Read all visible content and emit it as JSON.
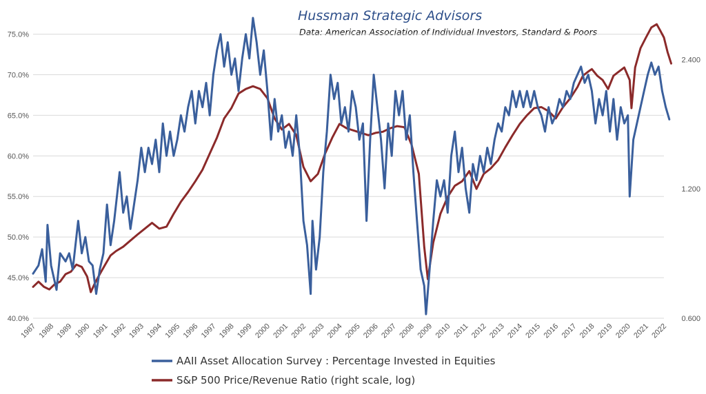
{
  "chart_data": {
    "type": "line",
    "title": "Hussman Strategic Advisors",
    "subtitle": "Data: American Association of Individual Investors, Standard & Poors",
    "x_ticks": [
      "1987",
      "1988",
      "1989",
      "1990",
      "1991",
      "1992",
      "1993",
      "1994",
      "1995",
      "1996",
      "1997",
      "1998",
      "1999",
      "2000",
      "2001",
      "2002",
      "2003",
      "2004",
      "2005",
      "2006",
      "2007",
      "2008",
      "2009",
      "2010",
      "2011",
      "2012",
      "2013",
      "2014",
      "2015",
      "2016",
      "2017",
      "2018",
      "2019",
      "2020",
      "2021",
      "2022"
    ],
    "xlim": [
      1987,
      2022
    ],
    "y_left": {
      "lim": [
        40,
        77
      ],
      "ticks": [
        40,
        45,
        50,
        55,
        60,
        65,
        70,
        75
      ],
      "tick_labels": [
        "40.0%",
        "45.0%",
        "50.0%",
        "55.0%",
        "60.0%",
        "65.0%",
        "70.0%",
        "75.0%"
      ]
    },
    "y_right": {
      "scale": "log",
      "lim": [
        0.6,
        3.0
      ],
      "ticks": [
        0.6,
        1.2,
        2.4
      ],
      "tick_labels": [
        "0.600",
        "1.200",
        "2.400"
      ]
    },
    "grid": "horizontal",
    "legend_position": "bottom-center",
    "series": [
      {
        "name": "AAII Asset Allocation Survey : Percentage Invested in Equities",
        "axis": "left",
        "color": "#3a5f9c",
        "points": [
          [
            1987.0,
            45.5
          ],
          [
            1987.3,
            46.5
          ],
          [
            1987.5,
            48.5
          ],
          [
            1987.7,
            44.5
          ],
          [
            1987.8,
            51.5
          ],
          [
            1988.0,
            46.5
          ],
          [
            1988.3,
            43.5
          ],
          [
            1988.5,
            48.0
          ],
          [
            1988.8,
            47.0
          ],
          [
            1989.0,
            48.0
          ],
          [
            1989.2,
            46.0
          ],
          [
            1989.5,
            52.0
          ],
          [
            1989.7,
            48.0
          ],
          [
            1989.9,
            50.0
          ],
          [
            1990.1,
            47.0
          ],
          [
            1990.3,
            46.5
          ],
          [
            1990.5,
            43.0
          ],
          [
            1990.7,
            46.0
          ],
          [
            1990.9,
            48.0
          ],
          [
            1991.1,
            54.0
          ],
          [
            1991.3,
            49.0
          ],
          [
            1991.5,
            52.0
          ],
          [
            1991.7,
            56.0
          ],
          [
            1991.8,
            58.0
          ],
          [
            1992.0,
            53.0
          ],
          [
            1992.2,
            55.0
          ],
          [
            1992.4,
            51.0
          ],
          [
            1992.6,
            54.0
          ],
          [
            1992.8,
            57.0
          ],
          [
            1993.0,
            61.0
          ],
          [
            1993.2,
            58.0
          ],
          [
            1993.4,
            61.0
          ],
          [
            1993.6,
            59.0
          ],
          [
            1993.8,
            62.0
          ],
          [
            1994.0,
            58.0
          ],
          [
            1994.2,
            64.0
          ],
          [
            1994.4,
            60.0
          ],
          [
            1994.6,
            63.0
          ],
          [
            1994.8,
            60.0
          ],
          [
            1995.0,
            62.0
          ],
          [
            1995.2,
            65.0
          ],
          [
            1995.4,
            63.0
          ],
          [
            1995.6,
            66.0
          ],
          [
            1995.8,
            68.0
          ],
          [
            1996.0,
            64.0
          ],
          [
            1996.2,
            68.0
          ],
          [
            1996.4,
            66.0
          ],
          [
            1996.6,
            69.0
          ],
          [
            1996.8,
            65.0
          ],
          [
            1997.0,
            70.0
          ],
          [
            1997.2,
            73.0
          ],
          [
            1997.4,
            75.0
          ],
          [
            1997.6,
            71.0
          ],
          [
            1997.8,
            74.0
          ],
          [
            1998.0,
            70.0
          ],
          [
            1998.2,
            72.0
          ],
          [
            1998.4,
            68.0
          ],
          [
            1998.6,
            72.0
          ],
          [
            1998.8,
            75.0
          ],
          [
            1999.0,
            72.0
          ],
          [
            1999.2,
            77.0
          ],
          [
            1999.4,
            74.0
          ],
          [
            1999.6,
            70.0
          ],
          [
            1999.8,
            73.0
          ],
          [
            2000.0,
            68.0
          ],
          [
            2000.2,
            62.0
          ],
          [
            2000.4,
            67.0
          ],
          [
            2000.6,
            63.0
          ],
          [
            2000.8,
            65.0
          ],
          [
            2001.0,
            61.0
          ],
          [
            2001.2,
            63.0
          ],
          [
            2001.4,
            60.0
          ],
          [
            2001.6,
            65.0
          ],
          [
            2001.8,
            60.0
          ],
          [
            2002.0,
            52.0
          ],
          [
            2002.2,
            49.0
          ],
          [
            2002.4,
            43.0
          ],
          [
            2002.5,
            52.0
          ],
          [
            2002.7,
            46.0
          ],
          [
            2002.9,
            50.0
          ],
          [
            2003.1,
            58.0
          ],
          [
            2003.3,
            63.0
          ],
          [
            2003.5,
            70.0
          ],
          [
            2003.7,
            67.0
          ],
          [
            2003.9,
            69.0
          ],
          [
            2004.1,
            64.0
          ],
          [
            2004.3,
            66.0
          ],
          [
            2004.5,
            63.0
          ],
          [
            2004.7,
            68.0
          ],
          [
            2004.9,
            66.0
          ],
          [
            2005.1,
            62.0
          ],
          [
            2005.3,
            64.0
          ],
          [
            2005.5,
            52.0
          ],
          [
            2005.7,
            62.0
          ],
          [
            2005.9,
            70.0
          ],
          [
            2006.1,
            66.0
          ],
          [
            2006.3,
            62.0
          ],
          [
            2006.5,
            56.0
          ],
          [
            2006.7,
            64.0
          ],
          [
            2006.9,
            60.0
          ],
          [
            2007.1,
            68.0
          ],
          [
            2007.3,
            65.0
          ],
          [
            2007.5,
            68.0
          ],
          [
            2007.7,
            62.0
          ],
          [
            2007.9,
            65.0
          ],
          [
            2008.1,
            58.0
          ],
          [
            2008.3,
            52.0
          ],
          [
            2008.5,
            46.0
          ],
          [
            2008.7,
            44.0
          ],
          [
            2008.8,
            40.5
          ],
          [
            2009.0,
            46.0
          ],
          [
            2009.2,
            52.0
          ],
          [
            2009.4,
            57.0
          ],
          [
            2009.6,
            55.0
          ],
          [
            2009.8,
            57.0
          ],
          [
            2010.0,
            53.0
          ],
          [
            2010.2,
            60.0
          ],
          [
            2010.4,
            63.0
          ],
          [
            2010.6,
            58.0
          ],
          [
            2010.8,
            61.0
          ],
          [
            2011.0,
            56.0
          ],
          [
            2011.2,
            53.0
          ],
          [
            2011.4,
            59.0
          ],
          [
            2011.6,
            57.0
          ],
          [
            2011.8,
            60.0
          ],
          [
            2012.0,
            58.0
          ],
          [
            2012.2,
            61.0
          ],
          [
            2012.4,
            59.0
          ],
          [
            2012.6,
            62.0
          ],
          [
            2012.8,
            64.0
          ],
          [
            2013.0,
            63.0
          ],
          [
            2013.2,
            66.0
          ],
          [
            2013.4,
            65.0
          ],
          [
            2013.6,
            68.0
          ],
          [
            2013.8,
            66.0
          ],
          [
            2014.0,
            68.0
          ],
          [
            2014.2,
            66.0
          ],
          [
            2014.4,
            68.0
          ],
          [
            2014.6,
            66.0
          ],
          [
            2014.8,
            68.0
          ],
          [
            2015.0,
            66.0
          ],
          [
            2015.2,
            65.0
          ],
          [
            2015.4,
            63.0
          ],
          [
            2015.6,
            66.0
          ],
          [
            2015.8,
            64.0
          ],
          [
            2016.0,
            65.0
          ],
          [
            2016.2,
            67.0
          ],
          [
            2016.4,
            66.0
          ],
          [
            2016.6,
            68.0
          ],
          [
            2016.8,
            67.0
          ],
          [
            2017.0,
            69.0
          ],
          [
            2017.2,
            70.0
          ],
          [
            2017.4,
            71.0
          ],
          [
            2017.6,
            69.0
          ],
          [
            2017.8,
            70.0
          ],
          [
            2018.0,
            68.0
          ],
          [
            2018.2,
            64.0
          ],
          [
            2018.4,
            67.0
          ],
          [
            2018.6,
            65.0
          ],
          [
            2018.8,
            68.0
          ],
          [
            2019.0,
            63.0
          ],
          [
            2019.2,
            67.0
          ],
          [
            2019.4,
            62.0
          ],
          [
            2019.6,
            66.0
          ],
          [
            2019.8,
            64.0
          ],
          [
            2020.0,
            65.0
          ],
          [
            2020.1,
            55.0
          ],
          [
            2020.3,
            62.0
          ],
          [
            2020.5,
            64.0
          ],
          [
            2020.7,
            66.0
          ],
          [
            2020.9,
            68.0
          ],
          [
            2021.1,
            70.0
          ],
          [
            2021.3,
            71.5
          ],
          [
            2021.5,
            70.0
          ],
          [
            2021.7,
            71.0
          ],
          [
            2021.9,
            68.0
          ],
          [
            2022.1,
            66.0
          ],
          [
            2022.3,
            64.5
          ]
        ]
      },
      {
        "name": "S&P 500 Price/Revenue Ratio (right scale, log)",
        "axis": "right",
        "color": "#8b2a2a",
        "points": [
          [
            1987.0,
            0.71
          ],
          [
            1987.3,
            0.73
          ],
          [
            1987.6,
            0.71
          ],
          [
            1987.9,
            0.7
          ],
          [
            1988.2,
            0.72
          ],
          [
            1988.5,
            0.73
          ],
          [
            1988.8,
            0.76
          ],
          [
            1989.1,
            0.77
          ],
          [
            1989.4,
            0.8
          ],
          [
            1989.7,
            0.79
          ],
          [
            1990.0,
            0.75
          ],
          [
            1990.2,
            0.69
          ],
          [
            1990.4,
            0.72
          ],
          [
            1990.7,
            0.76
          ],
          [
            1991.0,
            0.8
          ],
          [
            1991.3,
            0.84
          ],
          [
            1991.6,
            0.86
          ],
          [
            1992.0,
            0.88
          ],
          [
            1992.4,
            0.91
          ],
          [
            1992.8,
            0.94
          ],
          [
            1993.2,
            0.97
          ],
          [
            1993.6,
            1.0
          ],
          [
            1994.0,
            0.97
          ],
          [
            1994.4,
            0.98
          ],
          [
            1994.8,
            1.05
          ],
          [
            1995.2,
            1.12
          ],
          [
            1995.6,
            1.18
          ],
          [
            1996.0,
            1.25
          ],
          [
            1996.4,
            1.33
          ],
          [
            1996.8,
            1.45
          ],
          [
            1997.2,
            1.58
          ],
          [
            1997.6,
            1.75
          ],
          [
            1998.0,
            1.85
          ],
          [
            1998.4,
            2.0
          ],
          [
            1998.8,
            2.05
          ],
          [
            1999.2,
            2.08
          ],
          [
            1999.6,
            2.05
          ],
          [
            2000.0,
            1.95
          ],
          [
            2000.4,
            1.75
          ],
          [
            2000.8,
            1.65
          ],
          [
            2001.2,
            1.7
          ],
          [
            2001.6,
            1.6
          ],
          [
            2002.0,
            1.35
          ],
          [
            2002.4,
            1.25
          ],
          [
            2002.8,
            1.3
          ],
          [
            2003.2,
            1.45
          ],
          [
            2003.6,
            1.58
          ],
          [
            2004.0,
            1.7
          ],
          [
            2004.4,
            1.66
          ],
          [
            2004.8,
            1.64
          ],
          [
            2005.2,
            1.62
          ],
          [
            2005.6,
            1.6
          ],
          [
            2006.0,
            1.62
          ],
          [
            2006.4,
            1.63
          ],
          [
            2006.8,
            1.66
          ],
          [
            2007.2,
            1.68
          ],
          [
            2007.6,
            1.67
          ],
          [
            2008.0,
            1.52
          ],
          [
            2008.4,
            1.3
          ],
          [
            2008.7,
            0.88
          ],
          [
            2008.9,
            0.74
          ],
          [
            2009.2,
            0.9
          ],
          [
            2009.6,
            1.05
          ],
          [
            2010.0,
            1.15
          ],
          [
            2010.4,
            1.22
          ],
          [
            2010.8,
            1.25
          ],
          [
            2011.2,
            1.32
          ],
          [
            2011.6,
            1.2
          ],
          [
            2012.0,
            1.3
          ],
          [
            2012.4,
            1.34
          ],
          [
            2012.8,
            1.4
          ],
          [
            2013.2,
            1.5
          ],
          [
            2013.6,
            1.6
          ],
          [
            2014.0,
            1.7
          ],
          [
            2014.4,
            1.78
          ],
          [
            2014.8,
            1.85
          ],
          [
            2015.2,
            1.86
          ],
          [
            2015.6,
            1.82
          ],
          [
            2016.0,
            1.75
          ],
          [
            2016.4,
            1.86
          ],
          [
            2016.8,
            1.95
          ],
          [
            2017.2,
            2.07
          ],
          [
            2017.5,
            2.2
          ],
          [
            2017.8,
            2.25
          ],
          [
            2018.0,
            2.28
          ],
          [
            2018.3,
            2.2
          ],
          [
            2018.6,
            2.15
          ],
          [
            2018.9,
            2.05
          ],
          [
            2019.2,
            2.2
          ],
          [
            2019.5,
            2.25
          ],
          [
            2019.8,
            2.3
          ],
          [
            2020.1,
            2.15
          ],
          [
            2020.2,
            1.85
          ],
          [
            2020.4,
            2.3
          ],
          [
            2020.7,
            2.55
          ],
          [
            2021.0,
            2.7
          ],
          [
            2021.3,
            2.85
          ],
          [
            2021.6,
            2.9
          ],
          [
            2021.8,
            2.8
          ],
          [
            2022.0,
            2.7
          ],
          [
            2022.2,
            2.5
          ],
          [
            2022.4,
            2.35
          ]
        ]
      }
    ]
  }
}
